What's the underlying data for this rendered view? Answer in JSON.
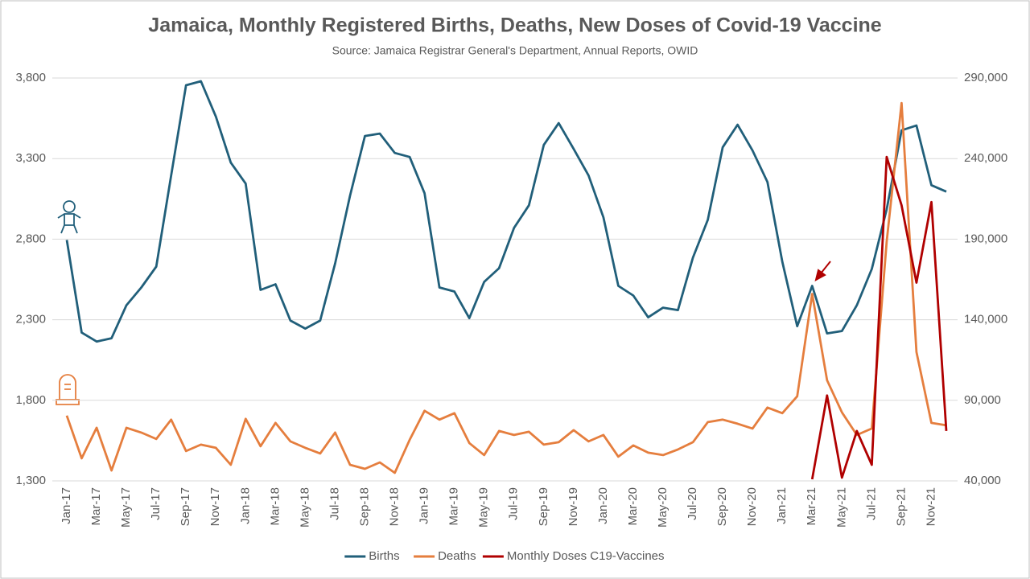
{
  "chart_data": {
    "type": "line",
    "title": "Jamaica, Monthly Registered Births, Deaths, New Doses of Covid-19 Vaccine",
    "subtitle": "Source: Jamaica Registrar General's Department, Annual Reports, OWID",
    "categories": [
      "Jan-17",
      null,
      "Mar-17",
      null,
      "May-17",
      null,
      "Jul-17",
      null,
      "Sep-17",
      null,
      "Nov-17",
      null,
      "Jan-18",
      null,
      "Mar-18",
      null,
      "May-18",
      null,
      "Jul-18",
      null,
      "Sep-18",
      null,
      "Nov-18",
      null,
      "Jan-19",
      null,
      "Mar-19",
      null,
      "May-19",
      null,
      "Jul-19",
      null,
      "Sep-19",
      null,
      "Nov-19",
      null,
      "Jan-20",
      null,
      "Mar-20",
      null,
      "May-20",
      null,
      "Jul-20",
      null,
      "Sep-20",
      null,
      "Nov-20",
      null,
      "Jan-21",
      null,
      "Mar-21",
      null,
      "May-21",
      null,
      "Jul-21",
      null,
      "Sep-21",
      null,
      "Nov-21",
      null
    ],
    "series": [
      {
        "name": "Births",
        "color": "#215f7a",
        "values": [
          2795,
          2220,
          2165,
          2185,
          2390,
          2500,
          2630,
          3195,
          3755,
          3780,
          3560,
          3275,
          3145,
          2485,
          2520,
          2295,
          2245,
          2295,
          2650,
          3070,
          3440,
          3455,
          3335,
          3310,
          3085,
          2500,
          2475,
          2310,
          2535,
          2620,
          2870,
          3010,
          3385,
          3520,
          3360,
          3195,
          2935,
          2510,
          2450,
          2315,
          2375,
          2360,
          2685,
          2920,
          3370,
          3510,
          3350,
          3155,
          2660,
          2260,
          2510,
          2215,
          2230,
          2390,
          2615,
          2985,
          3475,
          3505,
          3135,
          3095
        ]
      },
      {
        "name": "Deaths",
        "color": "#e57e3e",
        "values": [
          1705,
          1440,
          1630,
          1365,
          1630,
          1600,
          1560,
          1680,
          1485,
          1525,
          1505,
          1400,
          1685,
          1515,
          1660,
          1545,
          1505,
          1470,
          1600,
          1400,
          1375,
          1415,
          1350,
          1555,
          1735,
          1680,
          1720,
          1535,
          1460,
          1610,
          1585,
          1605,
          1525,
          1540,
          1615,
          1545,
          1585,
          1450,
          1520,
          1475,
          1460,
          1495,
          1540,
          1665,
          1680,
          1655,
          1625,
          1755,
          1720,
          1825,
          2460,
          1925,
          1725,
          1585,
          1625,
          2785,
          3645,
          2100,
          1660,
          1645
        ]
      },
      {
        "name": "Monthly Doses C19-Vaccines",
        "color": "#b00000",
        "axis": "y2",
        "values": [
          null,
          null,
          null,
          null,
          null,
          null,
          null,
          null,
          null,
          null,
          null,
          null,
          null,
          null,
          null,
          null,
          null,
          null,
          null,
          null,
          null,
          null,
          null,
          null,
          null,
          null,
          null,
          null,
          null,
          null,
          null,
          null,
          null,
          null,
          null,
          null,
          null,
          null,
          null,
          null,
          null,
          null,
          null,
          null,
          null,
          null,
          null,
          null,
          null,
          null,
          41000,
          93000,
          42000,
          71000,
          50000,
          241000,
          211000,
          163000,
          213000,
          71000
        ]
      }
    ],
    "ylim": [
      1300,
      3800
    ],
    "yticks": [
      {
        "value": 1300,
        "label": "1,300"
      },
      {
        "value": 1800,
        "label": "1,800"
      },
      {
        "value": 2300,
        "label": "2,300"
      },
      {
        "value": 2800,
        "label": "2,800"
      },
      {
        "value": 3300,
        "label": "3,300"
      },
      {
        "value": 3800,
        "label": "3,800"
      }
    ],
    "y2lim": [
      40000,
      290000
    ],
    "y2ticks": [
      {
        "value": 40000,
        "label": "40,000"
      },
      {
        "value": 90000,
        "label": "90,000"
      },
      {
        "value": 140000,
        "label": "140,000"
      },
      {
        "value": 190000,
        "label": "190,000"
      },
      {
        "value": 240000,
        "label": "240,000"
      },
      {
        "value": 290000,
        "label": "290,000"
      }
    ],
    "grid": true,
    "legend": "bottom"
  }
}
